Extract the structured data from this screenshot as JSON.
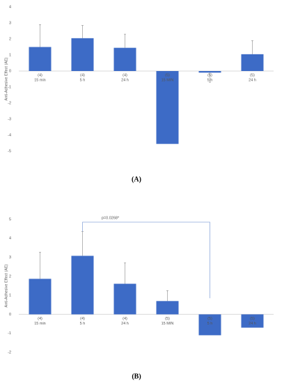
{
  "chart_data": [
    {
      "type": "bar",
      "caption": "(A)",
      "y_label": "Anti-Adhesive Effect (AE)",
      "categories": [
        "15 min",
        "5 h",
        "24 h",
        "15 MIN",
        "5 h",
        "24 h"
      ],
      "n_labels": [
        "(4)",
        "(4)",
        "(4)",
        "(5)",
        "(5)",
        "(5)"
      ],
      "values": [
        1.5,
        2.05,
        1.45,
        -4.55,
        -0.1,
        1.05
      ],
      "errors": [
        1.4,
        0.8,
        0.85,
        null,
        0.6,
        0.85
      ],
      "color": "#3d6bc6",
      "ylim": [
        -5,
        4
      ],
      "yticks": [
        -5,
        -4,
        -3,
        -2,
        -1,
        0,
        1,
        2,
        3,
        4
      ]
    },
    {
      "type": "bar",
      "caption": "(B)",
      "y_label": "Anti-Adhesive Effect (AE)",
      "categories": [
        "15 min",
        "5 h",
        "24 h",
        "15 MIN",
        "5 h",
        "24 h"
      ],
      "n_labels": [
        "(4)",
        "(4)",
        "(4)",
        "(5)",
        "(5)",
        "(5)"
      ],
      "values": [
        1.87,
        3.08,
        1.61,
        0.7,
        -1.1,
        -0.7
      ],
      "errors": [
        1.4,
        1.28,
        1.1,
        0.55,
        null,
        null
      ],
      "color": "#3d6bc6",
      "ylim": [
        -2,
        5
      ],
      "yticks": [
        -2,
        -1,
        0,
        1,
        2,
        3,
        4,
        5
      ],
      "annotation": {
        "text": "p=0.0268*",
        "from": 1,
        "to": 4
      }
    }
  ]
}
